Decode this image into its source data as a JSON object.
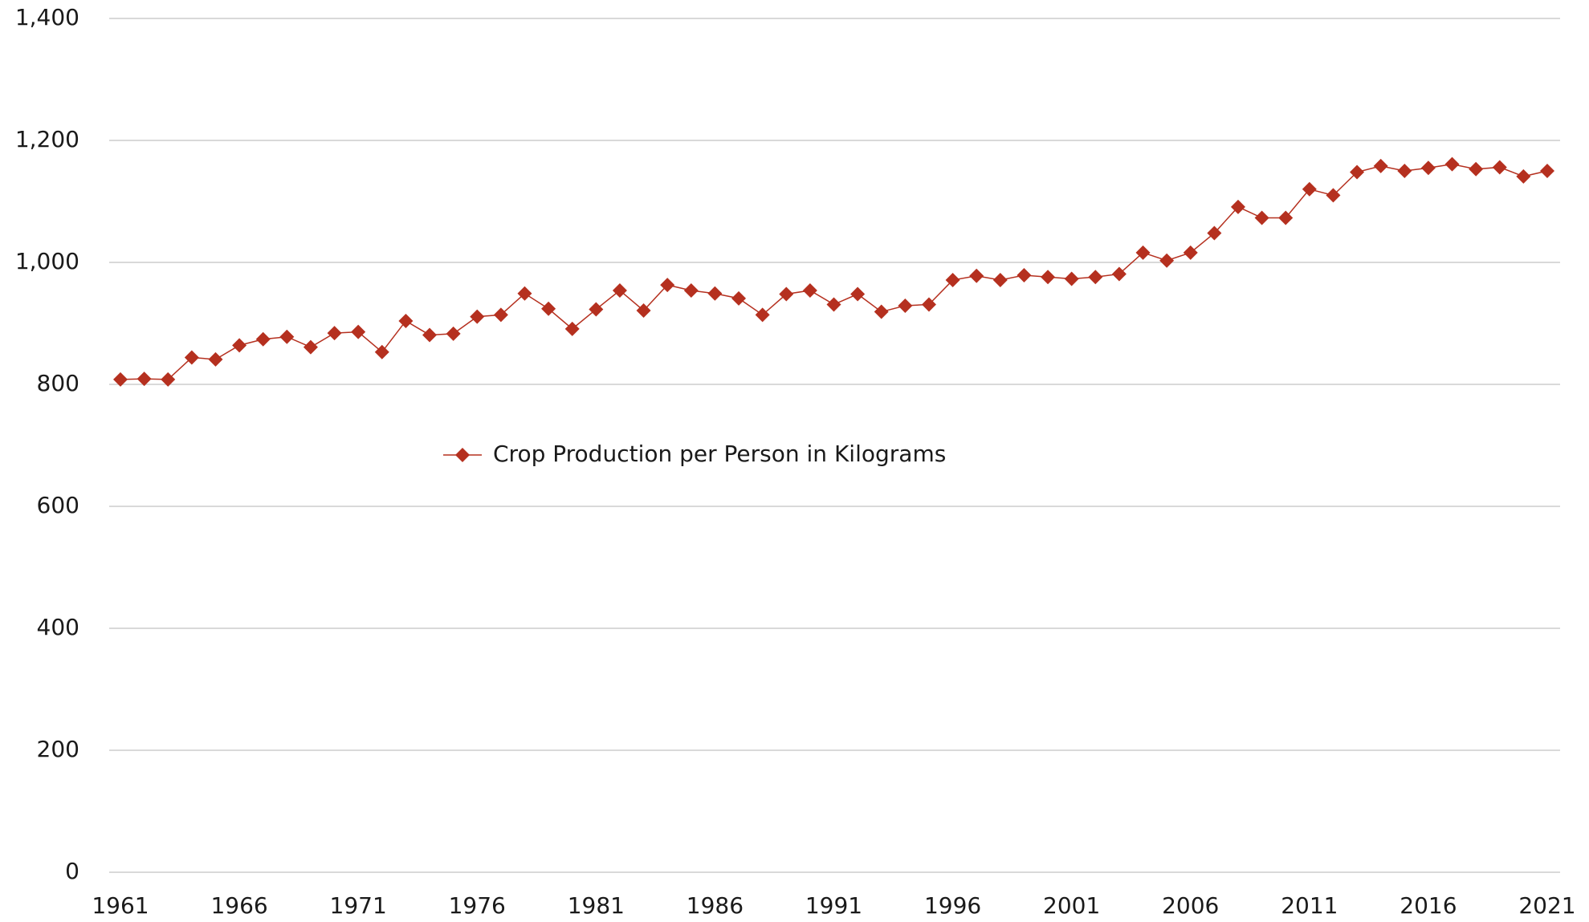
{
  "chart_data": {
    "type": "line",
    "x": [
      1961,
      1962,
      1963,
      1964,
      1965,
      1966,
      1967,
      1968,
      1969,
      1970,
      1971,
      1972,
      1973,
      1974,
      1975,
      1976,
      1977,
      1978,
      1979,
      1980,
      1981,
      1982,
      1983,
      1984,
      1985,
      1986,
      1987,
      1988,
      1989,
      1990,
      1991,
      1992,
      1993,
      1994,
      1995,
      1996,
      1997,
      1998,
      1999,
      2000,
      2001,
      2002,
      2003,
      2004,
      2005,
      2006,
      2007,
      2008,
      2009,
      2010,
      2011,
      2012,
      2013,
      2014,
      2015,
      2016,
      2017,
      2018,
      2019,
      2020,
      2021
    ],
    "series": [
      {
        "name": "Crop Production per Person in Kilograms",
        "color": "#b5301f",
        "values": [
          808,
          809,
          808,
          844,
          841,
          864,
          874,
          878,
          861,
          884,
          886,
          853,
          904,
          881,
          883,
          911,
          914,
          949,
          924,
          891,
          923,
          954,
          921,
          963,
          954,
          949,
          941,
          914,
          948,
          954,
          931,
          948,
          919,
          929,
          931,
          971,
          978,
          971,
          979,
          976,
          973,
          976,
          981,
          1016,
          1003,
          1016,
          1048,
          1091,
          1073,
          1073,
          1120,
          1110,
          1148,
          1158,
          1150,
          1155,
          1161,
          1153,
          1156,
          1141,
          1150
        ]
      }
    ],
    "xlim": [
      1961,
      2021
    ],
    "xticks": [
      1961,
      1966,
      1971,
      1976,
      1981,
      1986,
      1991,
      1996,
      2001,
      2006,
      2011,
      2016,
      2021
    ],
    "ylim": [
      0,
      1400
    ],
    "yticks": [
      0,
      200,
      400,
      600,
      800,
      {
        "value": 1000,
        "label": "1,000"
      },
      {
        "value": 1200,
        "label": "1,200"
      },
      {
        "value": 1400,
        "label": "1,400"
      }
    ],
    "grid": true
  }
}
